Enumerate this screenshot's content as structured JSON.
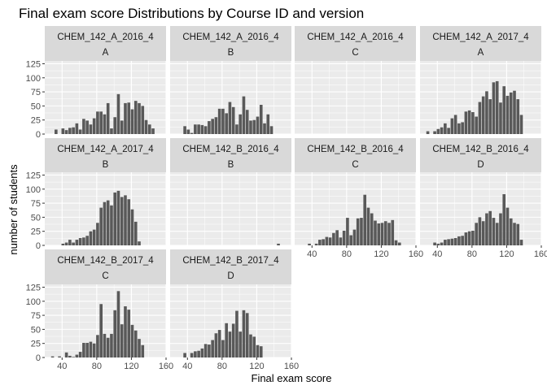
{
  "chart_data": {
    "type": "bar",
    "title": "Final exam score Distributions by Course ID and version",
    "xlabel": "Final exam score",
    "ylabel": "number of students",
    "xlim": [
      20,
      160
    ],
    "ylim": [
      0,
      130
    ],
    "x_ticks": [
      "40",
      "80",
      "120",
      "160"
    ],
    "y_ticks": [
      "0",
      "25",
      "50",
      "75",
      "100",
      "125"
    ],
    "grid": true,
    "colors": {
      "bar": "#595959",
      "panel_bg": "#ebebeb",
      "grid": "#ffffff",
      "strip_bg": "#d9d9d9"
    },
    "bin_centers": [
      29,
      33,
      37,
      41,
      45,
      49,
      53,
      57,
      61,
      65,
      69,
      73,
      77,
      81,
      85,
      89,
      93,
      97,
      101,
      105,
      109,
      113,
      117,
      121,
      125,
      129,
      133,
      137,
      141,
      145,
      149,
      153
    ],
    "panels": [
      {
        "course": "CHEM_142_A_2016_4",
        "version": "A",
        "values": [
          0,
          8,
          0,
          10,
          7,
          11,
          12,
          19,
          8,
          27,
          24,
          17,
          28,
          40,
          40,
          35,
          55,
          10,
          30,
          71,
          24,
          55,
          56,
          44,
          59,
          55,
          50,
          25,
          17,
          10,
          0,
          0
        ]
      },
      {
        "course": "CHEM_142_A_2016_4",
        "version": "B",
        "values": [
          0,
          0,
          14,
          8,
          2,
          17,
          17,
          16,
          14,
          23,
          27,
          30,
          45,
          45,
          37,
          57,
          48,
          17,
          35,
          67,
          43,
          24,
          25,
          31,
          52,
          19,
          35,
          14,
          0,
          0,
          0,
          0
        ]
      },
      {
        "course": "CHEM_142_A_2016_4",
        "version": "C",
        "values": [
          0,
          0,
          0,
          0,
          0,
          0,
          0,
          0,
          0,
          0,
          0,
          0,
          0,
          0,
          0,
          0,
          0,
          0,
          0,
          0,
          0,
          0,
          0,
          0,
          0,
          0,
          0,
          0,
          0,
          0,
          0,
          0
        ]
      },
      {
        "course": "CHEM_142_A_2017_4",
        "version": "A",
        "values": [
          5,
          0,
          5,
          9,
          12,
          19,
          11,
          28,
          34,
          19,
          21,
          40,
          42,
          39,
          31,
          57,
          67,
          76,
          62,
          92,
          94,
          56,
          85,
          68,
          74,
          77,
          62,
          34,
          0,
          0,
          0,
          0
        ]
      },
      {
        "course": "CHEM_142_A_2017_4",
        "version": "B",
        "values": [
          0,
          0,
          0,
          3,
          5,
          10,
          5,
          10,
          13,
          14,
          17,
          25,
          28,
          40,
          67,
          77,
          80,
          71,
          94,
          97,
          86,
          89,
          82,
          64,
          42,
          7,
          0,
          0,
          0,
          0,
          0,
          0
        ]
      },
      {
        "course": "CHEM_142_B_2016_4",
        "version": "B",
        "values": [
          0,
          0,
          0,
          0,
          0,
          0,
          0,
          0,
          0,
          0,
          0,
          0,
          0,
          0,
          0,
          0,
          0,
          0,
          0,
          0,
          0,
          0,
          0,
          0,
          0,
          0,
          0,
          0,
          0,
          3,
          0,
          0
        ]
      },
      {
        "course": "CHEM_142_B_2016_4",
        "version": "C",
        "values": [
          0,
          0,
          3,
          0,
          3,
          10,
          11,
          15,
          14,
          22,
          27,
          14,
          26,
          49,
          18,
          28,
          48,
          49,
          90,
          67,
          57,
          44,
          39,
          40,
          43,
          40,
          45,
          9,
          5,
          0,
          0,
          0
        ]
      },
      {
        "course": "CHEM_142_B_2016_4",
        "version": "D",
        "values": [
          0,
          0,
          5,
          3,
          5,
          10,
          11,
          12,
          13,
          16,
          17,
          23,
          25,
          26,
          40,
          50,
          43,
          57,
          61,
          49,
          40,
          57,
          91,
          67,
          48,
          40,
          38,
          10,
          0,
          0,
          0,
          0
        ]
      },
      {
        "course": "CHEM_142_B_2017_4",
        "version": "C",
        "values": [
          2,
          0,
          2,
          0,
          9,
          3,
          1,
          5,
          10,
          26,
          26,
          28,
          25,
          40,
          95,
          42,
          35,
          42,
          84,
          118,
          59,
          91,
          85,
          58,
          48,
          33,
          22,
          0,
          0,
          0,
          0,
          0
        ]
      },
      {
        "course": "CHEM_142_B_2017_4",
        "version": "D",
        "values": [
          0,
          0,
          8,
          0,
          8,
          11,
          12,
          16,
          24,
          23,
          31,
          43,
          49,
          31,
          61,
          46,
          60,
          83,
          46,
          84,
          79,
          41,
          37,
          22,
          20,
          0,
          0,
          0,
          0,
          0,
          0,
          0
        ]
      }
    ]
  }
}
